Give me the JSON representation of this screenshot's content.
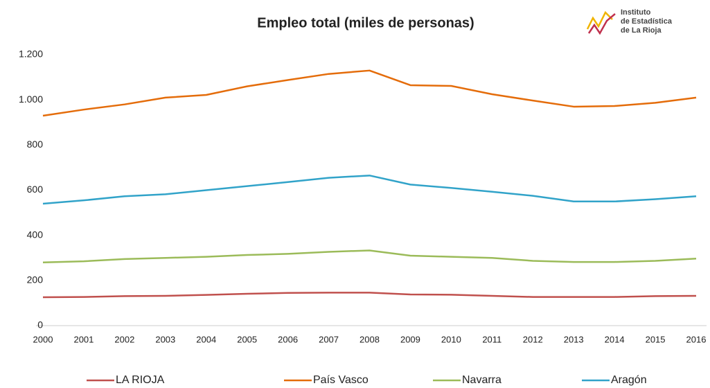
{
  "chart_data": {
    "type": "line",
    "title": "Empleo total (miles de personas)",
    "logo": [
      "Instituto",
      "de Estadística",
      "de La Rioja"
    ],
    "categories": [
      "2000",
      "2001",
      "2002",
      "2003",
      "2004",
      "2005",
      "2006",
      "2007",
      "2008",
      "2009",
      "2010",
      "2011",
      "2012",
      "2013",
      "2014",
      "2015",
      "2016"
    ],
    "series": [
      {
        "name": "LA RIOJA",
        "color": "#c0504d",
        "values": [
          126,
          127,
          131,
          132,
          136,
          141,
          145,
          146,
          146,
          138,
          137,
          132,
          127,
          127,
          127,
          131,
          132
        ]
      },
      {
        "name": "País Vasco",
        "color": "#e46c0a",
        "values": [
          930,
          957,
          980,
          1010,
          1022,
          1060,
          1088,
          1115,
          1130,
          1065,
          1062,
          1025,
          997,
          970,
          973,
          987,
          1010
        ]
      },
      {
        "name": "Navarra",
        "color": "#9bbb59",
        "values": [
          280,
          285,
          295,
          300,
          305,
          313,
          318,
          327,
          333,
          310,
          305,
          300,
          287,
          282,
          282,
          287,
          297
        ]
      },
      {
        "name": "Aragón",
        "color": "#31a3c9",
        "values": [
          540,
          555,
          573,
          582,
          600,
          618,
          636,
          655,
          665,
          625,
          610,
          593,
          575,
          550,
          550,
          560,
          573
        ]
      }
    ],
    "ylim": [
      0,
      1200
    ],
    "yticks": [
      0,
      200,
      400,
      600,
      800,
      {
        "value": 1000,
        "label": "1.000"
      },
      {
        "value": 1200,
        "label": "1.200"
      }
    ],
    "legend": "bottom"
  }
}
